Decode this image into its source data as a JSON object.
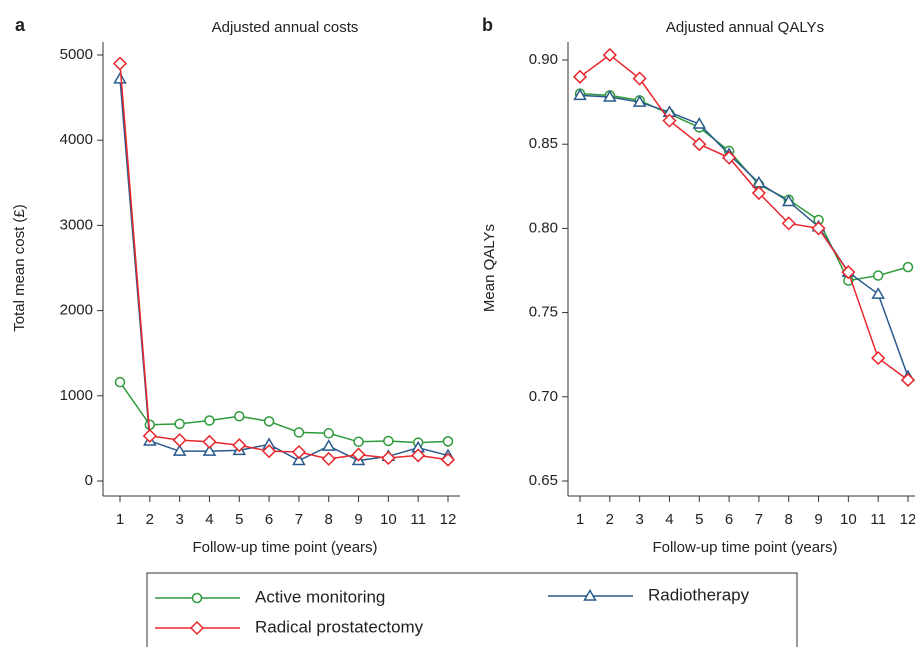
{
  "chart_data": [
    {
      "type": "line",
      "panel_label": "a",
      "title": "Adjusted annual costs",
      "x_label": "Follow-up time point (years)",
      "y_label": "Total mean cost (£)",
      "categories": [
        "1",
        "2",
        "3",
        "4",
        "5",
        "6",
        "7",
        "8",
        "9",
        "10",
        "11",
        "12"
      ],
      "ylim": [
        0,
        5000
      ],
      "yticks": [
        0,
        1000,
        2000,
        3000,
        4000,
        5000
      ],
      "series": [
        {
          "name": "Active monitoring",
          "color": "#2e9a3a",
          "marker": "circle",
          "values": [
            1160,
            660,
            670,
            710,
            760,
            700,
            570,
            560,
            460,
            470,
            450,
            465
          ]
        },
        {
          "name": "Radiotherapy",
          "color": "#2a5a8c",
          "marker": "triangle",
          "values": [
            4720,
            470,
            350,
            350,
            360,
            430,
            240,
            410,
            240,
            290,
            390,
            300
          ]
        },
        {
          "name": "Radical prostatectomy",
          "color": "#e8262b",
          "marker": "diamond",
          "values": [
            4900,
            530,
            480,
            460,
            420,
            350,
            340,
            260,
            310,
            270,
            300,
            250
          ]
        }
      ]
    },
    {
      "type": "line",
      "panel_label": "b",
      "title": "Adjusted annual QALYs",
      "x_label": "Follow-up time point (years)",
      "y_label": "Mean QALYs",
      "categories": [
        "1",
        "2",
        "3",
        "4",
        "5",
        "6",
        "7",
        "8",
        "9",
        "10",
        "11",
        "12"
      ],
      "ylim": [
        0.65,
        0.9
      ],
      "yticks": [
        0.65,
        {
          "value": 0.7,
          "label": "0.70"
        },
        0.75,
        {
          "value": 0.8,
          "label": "0.80"
        },
        0.85,
        {
          "value": 0.9,
          "label": "0.90"
        }
      ],
      "series": [
        {
          "color": "#2e9a3a",
          "marker": "circle",
          "values": [
            0.88,
            0.879,
            0.876,
            0.868,
            0.86,
            0.846,
            0.826,
            0.817,
            0.805,
            0.769,
            0.772,
            0.777
          ]
        },
        {
          "color": "#2a5a8c",
          "marker": "triangle",
          "values": [
            0.879,
            0.878,
            0.875,
            0.869,
            0.862,
            0.844,
            0.827,
            0.816,
            0.801,
            0.774,
            0.761,
            0.712
          ]
        },
        {
          "color": "#e8262b",
          "marker": "diamond",
          "values": [
            0.89,
            0.903,
            0.889,
            0.864,
            0.85,
            0.842,
            0.821,
            0.803,
            0.8,
            0.774,
            0.723,
            0.71
          ]
        }
      ]
    }
  ]
}
